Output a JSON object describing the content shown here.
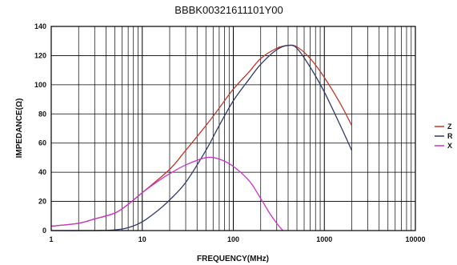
{
  "chart_data": {
    "type": "line",
    "title": "BBBK00321611101Y00",
    "xlabel": "FREQUENCY(MHz)",
    "ylabel": "IMPEDANCE(Ω)",
    "x_scale": "log",
    "xlim": [
      1,
      10000
    ],
    "ylim": [
      0,
      140
    ],
    "x_ticks": [
      "1",
      "10",
      "100",
      "1000",
      "10000"
    ],
    "y_ticks": [
      "0",
      "20",
      "40",
      "60",
      "80",
      "100",
      "120",
      "140"
    ],
    "grid": true,
    "legend_position": "right",
    "series": [
      {
        "name": "Z",
        "color": "#c0392b",
        "x": [
          1,
          2,
          3,
          5,
          7,
          10,
          20,
          30,
          50,
          70,
          100,
          150,
          200,
          300,
          400,
          500,
          700,
          1000,
          1500,
          2000
        ],
        "y": [
          3,
          5,
          8,
          12,
          18,
          26,
          42,
          55,
          72,
          84,
          97,
          109,
          118,
          125,
          127,
          126,
          118,
          105,
          87,
          72
        ]
      },
      {
        "name": "R",
        "color": "#2e3a6b",
        "x": [
          1,
          3,
          5,
          7,
          10,
          15,
          20,
          30,
          50,
          70,
          100,
          150,
          200,
          300,
          400,
          500,
          700,
          1000,
          1500,
          2000
        ],
        "y": [
          0,
          0,
          0.5,
          2,
          6,
          14,
          21,
          33,
          55,
          72,
          89,
          104,
          114,
          124,
          127,
          125,
          112,
          95,
          72,
          55
        ]
      },
      {
        "name": "X",
        "color": "#cc33cc",
        "x": [
          1,
          2,
          3,
          5,
          7,
          10,
          15,
          20,
          30,
          50,
          70,
          100,
          150,
          200,
          250,
          300,
          350
        ],
        "y": [
          3,
          5,
          8,
          12,
          18,
          26,
          34,
          39,
          45,
          50,
          49,
          44,
          34,
          22,
          12,
          5,
          0
        ]
      }
    ]
  }
}
